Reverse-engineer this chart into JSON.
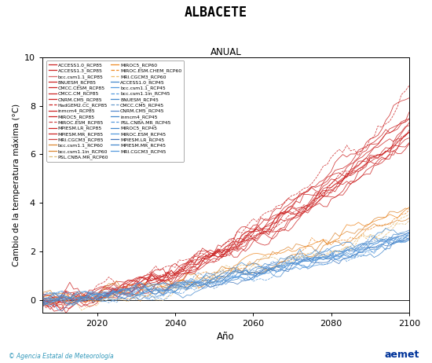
{
  "title": "ALBACETE",
  "subtitle": "ANUAL",
  "xlabel": "Año",
  "ylabel": "Cambio de la temperatura máxima (°C)",
  "xlim": [
    2006,
    2100
  ],
  "ylim": [
    -0.5,
    10
  ],
  "yticks": [
    0,
    2,
    4,
    6,
    8,
    10
  ],
  "xticks": [
    2020,
    2040,
    2060,
    2080,
    2100
  ],
  "start_year": 2006,
  "end_year": 2100,
  "background_color": "#FFFFFF",
  "watermark": "© Agencia Estatal de Meteorología",
  "legend_left": [
    [
      "ACCESS1.0_RCP85",
      "#CC2222",
      "-"
    ],
    [
      "ACCESS1.3_RCP85",
      "#CC2222",
      "-"
    ],
    [
      "bcc.csm1.1_RCP85",
      "#DD6666",
      "-"
    ],
    [
      "BNUESM_RCP85",
      "#CC2222",
      "-"
    ],
    [
      "CMCC.CESM_RCP85",
      "#CC2222",
      "-"
    ],
    [
      "CMCC.CM_RCP85",
      "#CC2222",
      "-"
    ],
    [
      "CNRM.CM5_RCP85",
      "#CC2222",
      "-"
    ],
    [
      "HadGEM2.CC_RCP85",
      "#CC2222",
      "--"
    ],
    [
      "inmcm4_RCP85",
      "#CC2222",
      "-"
    ],
    [
      "MIROC5_RCP85",
      "#CC2222",
      "-"
    ],
    [
      "MIROC.ESM_RCP85",
      "#CC4444",
      "--"
    ],
    [
      "MPIESM.LR_RCP85",
      "#CC2222",
      "-"
    ],
    [
      "MPIESM.MR_RCP85",
      "#CC2222",
      "-"
    ],
    [
      "MRI.CGCM3_RCP85",
      "#CC4444",
      "-"
    ],
    [
      "bcc.csm1.1_RCP60",
      "#DD8833",
      "-"
    ],
    [
      "bcc.csm1.1in_RCP60",
      "#DD8833",
      "-"
    ],
    [
      "PSL.CNBA.MR_RCP60",
      "#DDBB77",
      "--"
    ]
  ],
  "legend_right": [
    [
      "MIROC5_RCP60",
      "#EE8822",
      "-"
    ],
    [
      "MIROC.ESM.CHEM_RCP60",
      "#EE8822",
      "--"
    ],
    [
      "MRI.CGCM3_RCP60",
      "#EEBB66",
      "--"
    ],
    [
      "ACCESS1.0_RCP45",
      "#4488CC",
      "-"
    ],
    [
      "bcc.csm1.1_RCP45",
      "#5599DD",
      "-"
    ],
    [
      "bcc.csm1.1in_RCP45",
      "#5599DD",
      "--"
    ],
    [
      "BNUESM_RCP45",
      "#4488CC",
      "-"
    ],
    [
      "CMCC.CM5_RCP45",
      "#6699CC",
      "--"
    ],
    [
      "CNRM.CM5_RCP45",
      "#5588CC",
      "-"
    ],
    [
      "inmcm4_RCP45",
      "#4488CC",
      "-"
    ],
    [
      "PSL.CNBA.MR_RCP45",
      "#5599DD",
      "--"
    ],
    [
      "MIROC5_RCP45",
      "#4488CC",
      "-"
    ],
    [
      "MIROC.ESM_RCP45",
      "#5599DD",
      "-"
    ],
    [
      "MPIESM.LR_RCP45",
      "#4477BB",
      "-"
    ],
    [
      "MPIESM.MR_RCP45",
      "#4488CC",
      "-"
    ],
    [
      "MRI.CGCM3_RCP45",
      "#5599DD",
      "-"
    ]
  ],
  "rcp85_seeds": [
    1,
    8,
    15,
    22,
    29,
    36,
    43,
    50,
    57,
    64,
    71,
    78,
    85,
    92
  ],
  "rcp85_finals": [
    7.5,
    7.0,
    6.5,
    7.8,
    8.2,
    7.3,
    7.0,
    8.5,
    6.8,
    7.2,
    6.9,
    7.5,
    7.1,
    6.6
  ],
  "rcp60_seeds": [
    101,
    112,
    123,
    134,
    145,
    156
  ],
  "rcp60_finals": [
    3.8,
    3.5,
    3.2,
    4.0,
    3.6,
    3.3
  ],
  "rcp45_seeds": [
    201,
    214,
    227,
    240,
    253,
    266,
    279,
    292,
    305,
    318,
    331,
    344,
    357
  ],
  "rcp45_finals": [
    2.8,
    2.5,
    2.6,
    3.0,
    2.7,
    2.9,
    2.4,
    2.7,
    2.6,
    2.8,
    2.5,
    2.7,
    2.6
  ]
}
